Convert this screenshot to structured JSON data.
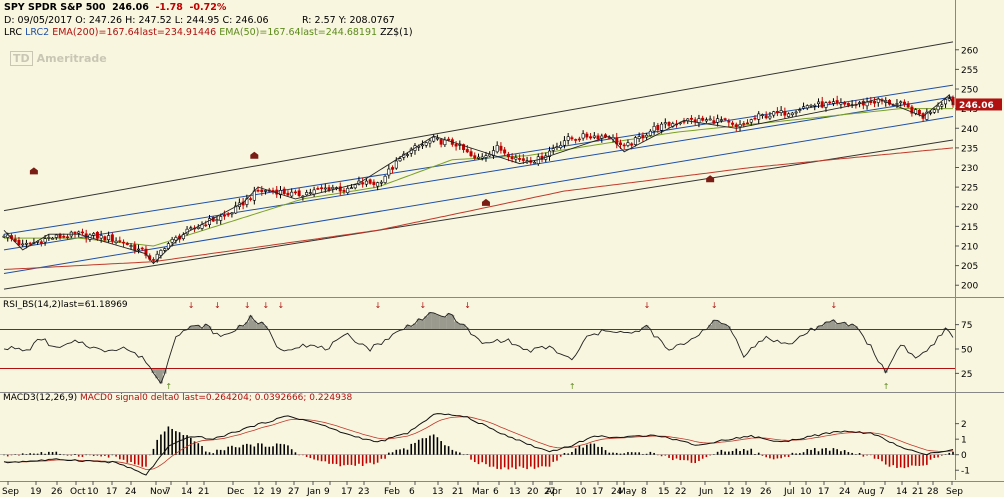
{
  "header": {
    "symbol": "SPY SPDR S&P 500",
    "last": "246.06",
    "change": "-1.78",
    "change_pct": "-0.72%",
    "date_line": "D: 09/05/2017 O: 247.26 H: 247.52 L: 244.95 C: 246.06",
    "r_line": "R: 2.57 Y: 208.0767",
    "study_lrc": "LRC",
    "study_lrc2": "LRC2",
    "study_ema200": "EMA(200)",
    "study_ema200_val": "=167.64",
    "study_ema200_last": "last=234.91446",
    "study_ema50": "EMA(50)",
    "study_ema50_val": "=167.64",
    "study_ema50_last": "last=244.68191",
    "study_zz": "ZZ$(1)",
    "watermark": "Ameritrade",
    "watermark_logo": "TD"
  },
  "colors": {
    "background": "#f8f6df",
    "up_candle": "#000000",
    "down_candle": "#c00000",
    "lrc_outer": "#333333",
    "lrc_inner": "#1f4fa8",
    "ema200": "#c0392b",
    "ema50": "#7aa02a",
    "price_tag": "#b01010",
    "rsi_fill": "#8a8a80",
    "macd_hist_up": "#000000",
    "macd_hist_down": "#c00000"
  },
  "chart_data": [
    {
      "type": "candlestick",
      "title": "SPY SPDR S&P 500",
      "ylim": [
        197,
        263
      ],
      "yticks": [
        200,
        205,
        210,
        215,
        220,
        225,
        230,
        235,
        240,
        245,
        250,
        255,
        260
      ],
      "last_price_label": "246.06",
      "anchors": [
        [
          0,
          213
        ],
        [
          5,
          210
        ],
        [
          12,
          212
        ],
        [
          20,
          213
        ],
        [
          28,
          212
        ],
        [
          32,
          211
        ],
        [
          38,
          208
        ],
        [
          40,
          206
        ],
        [
          43,
          210
        ],
        [
          48,
          213
        ],
        [
          54,
          216
        ],
        [
          60,
          218
        ],
        [
          64,
          221
        ],
        [
          68,
          224
        ],
        [
          73,
          224
        ],
        [
          78,
          223
        ],
        [
          83,
          224
        ],
        [
          88,
          225
        ],
        [
          92,
          224
        ],
        [
          95,
          226
        ],
        [
          100,
          226
        ],
        [
          104,
          230
        ],
        [
          108,
          234
        ],
        [
          115,
          237
        ],
        [
          121,
          236
        ],
        [
          126,
          232
        ],
        [
          132,
          235
        ],
        [
          138,
          232
        ],
        [
          143,
          232
        ],
        [
          150,
          237
        ],
        [
          156,
          238
        ],
        [
          162,
          238
        ],
        [
          166,
          235
        ],
        [
          174,
          240
        ],
        [
          182,
          242
        ],
        [
          188,
          242
        ],
        [
          192,
          242
        ],
        [
          196,
          240
        ],
        [
          202,
          243
        ],
        [
          209,
          244
        ],
        [
          216,
          246
        ],
        [
          222,
          246
        ],
        [
          228,
          246
        ],
        [
          234,
          247
        ],
        [
          240,
          246
        ],
        [
          246,
          243
        ],
        [
          250,
          246
        ],
        [
          253,
          248
        ],
        [
          254,
          246
        ]
      ],
      "lrc_outer_upper": [
        219,
        262
      ],
      "lrc_inner_upper": [
        213,
        251
      ],
      "lrc_mid": [
        209,
        248
      ],
      "lrc_inner_lower": [
        203,
        243
      ],
      "lrc_outer_lower": [
        199,
        237
      ],
      "ema200": [
        [
          0,
          204
        ],
        [
          40,
          206
        ],
        [
          100,
          214
        ],
        [
          150,
          224
        ],
        [
          200,
          230
        ],
        [
          254,
          235
        ]
      ],
      "ema50": [
        [
          0,
          212
        ],
        [
          20,
          212
        ],
        [
          40,
          210
        ],
        [
          60,
          216
        ],
        [
          80,
          222
        ],
        [
          100,
          225
        ],
        [
          120,
          232
        ],
        [
          140,
          233
        ],
        [
          160,
          236
        ],
        [
          180,
          239
        ],
        [
          200,
          241
        ],
        [
          220,
          243
        ],
        [
          240,
          245
        ],
        [
          254,
          245
        ]
      ],
      "markers": [
        [
          8,
          229
        ],
        [
          67,
          233
        ],
        [
          129,
          221
        ],
        [
          189,
          227
        ]
      ]
    },
    {
      "type": "line",
      "title": "RSI_BS(14,2)",
      "last_label": "last=61.18969",
      "ylim": [
        10,
        90
      ],
      "yticks": [
        25,
        50,
        75
      ],
      "overbought": 70,
      "oversold": 30,
      "anchors": [
        [
          0,
          52
        ],
        [
          6,
          48
        ],
        [
          10,
          61
        ],
        [
          14,
          50
        ],
        [
          20,
          58
        ],
        [
          26,
          48
        ],
        [
          32,
          52
        ],
        [
          38,
          38
        ],
        [
          42,
          14
        ],
        [
          46,
          65
        ],
        [
          50,
          72
        ],
        [
          54,
          74
        ],
        [
          58,
          62
        ],
        [
          62,
          70
        ],
        [
          66,
          82
        ],
        [
          70,
          73
        ],
        [
          74,
          48
        ],
        [
          80,
          55
        ],
        [
          86,
          50
        ],
        [
          92,
          64
        ],
        [
          98,
          50
        ],
        [
          104,
          64
        ],
        [
          110,
          78
        ],
        [
          114,
          85
        ],
        [
          120,
          84
        ],
        [
          124,
          70
        ],
        [
          128,
          55
        ],
        [
          134,
          60
        ],
        [
          140,
          48
        ],
        [
          146,
          52
        ],
        [
          152,
          38
        ],
        [
          156,
          62
        ],
        [
          162,
          70
        ],
        [
          168,
          65
        ],
        [
          172,
          73
        ],
        [
          178,
          48
        ],
        [
          184,
          60
        ],
        [
          190,
          78
        ],
        [
          194,
          74
        ],
        [
          198,
          44
        ],
        [
          204,
          62
        ],
        [
          210,
          54
        ],
        [
          216,
          70
        ],
        [
          222,
          78
        ],
        [
          228,
          74
        ],
        [
          232,
          52
        ],
        [
          236,
          26
        ],
        [
          240,
          56
        ],
        [
          244,
          40
        ],
        [
          248,
          52
        ],
        [
          252,
          70
        ],
        [
          254,
          61
        ]
      ]
    },
    {
      "type": "bar",
      "title": "MACD3(12,26,9)",
      "legend": "MACD0 signal0 delta0 last=0.264204; 0.0392666; 0.224938",
      "ylim": [
        -1.5,
        3.2
      ],
      "yticks": [
        -1,
        0,
        1,
        2
      ],
      "macd_anchors": [
        [
          0,
          -0.5
        ],
        [
          15,
          -0.3
        ],
        [
          30,
          -0.5
        ],
        [
          38,
          -1.3
        ],
        [
          44,
          0.5
        ],
        [
          50,
          1.2
        ],
        [
          56,
          1.0
        ],
        [
          66,
          1.8
        ],
        [
          76,
          2.5
        ],
        [
          84,
          2.0
        ],
        [
          92,
          1.3
        ],
        [
          100,
          0.8
        ],
        [
          108,
          1.4
        ],
        [
          116,
          2.7
        ],
        [
          124,
          2.4
        ],
        [
          132,
          1.5
        ],
        [
          140,
          0.7
        ],
        [
          146,
          0.2
        ],
        [
          152,
          0.6
        ],
        [
          158,
          1.2
        ],
        [
          166,
          1.1
        ],
        [
          174,
          1.3
        ],
        [
          186,
          0.6
        ],
        [
          194,
          1.0
        ],
        [
          200,
          1.2
        ],
        [
          208,
          0.8
        ],
        [
          216,
          1.2
        ],
        [
          224,
          1.5
        ],
        [
          232,
          1.4
        ],
        [
          240,
          0.5
        ],
        [
          246,
          0.0
        ],
        [
          254,
          0.3
        ]
      ],
      "x_tick_labels": [
        "Sep",
        "19",
        "26",
        "Oct",
        "10",
        "17",
        "24",
        "Nov",
        "7",
        "14",
        "21",
        "Dec",
        "12",
        "19",
        "27",
        "Jan",
        "9",
        "17",
        "23",
        "Feb",
        "6",
        "13",
        "21",
        "Mar",
        "6",
        "13",
        "20",
        "27",
        "Apr",
        "10",
        "17",
        "24",
        "May",
        "8",
        "15",
        "22",
        "Jun",
        "12",
        "19",
        "26",
        "Jul",
        "10",
        "17",
        "24",
        "Aug",
        "7",
        "14",
        "21",
        "28",
        "Sep"
      ]
    }
  ]
}
